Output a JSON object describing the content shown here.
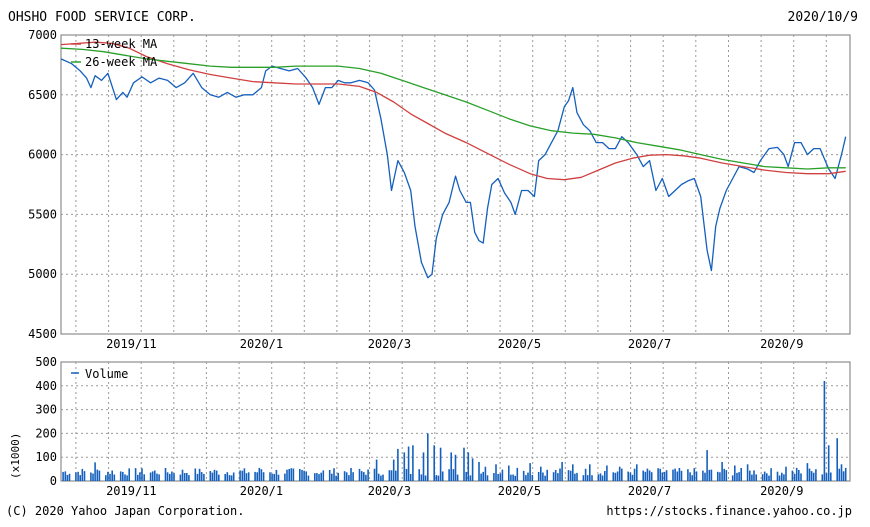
{
  "header": {
    "company": "OHSHO FOOD SERVICE CORP.",
    "date": "2020/10/9"
  },
  "footer": {
    "copyright": "(C) 2020 Yahoo Japan Corporation.",
    "url": "https://stocks.finance.yahoo.co.jp"
  },
  "chart_data": [
    {
      "type": "line",
      "panel": "price",
      "ylim": [
        4500,
        7000
      ],
      "yticks": [
        4500,
        5000,
        5500,
        6000,
        6500,
        7000
      ],
      "xlabels": [
        {
          "label": "2019/11",
          "day": 33
        },
        {
          "label": "2020/1",
          "day": 94
        },
        {
          "label": "2020/3",
          "day": 154
        },
        {
          "label": "2020/5",
          "day": 215
        },
        {
          "label": "2020/7",
          "day": 276
        },
        {
          "label": "2020/9",
          "day": 338
        }
      ],
      "xlim": [
        0,
        370
      ],
      "grid": true,
      "legend": [
        "13-week MA",
        "26-week MA"
      ],
      "series": [
        {
          "name": "",
          "color": "#1560bd",
          "points": [
            [
              0,
              6800
            ],
            [
              5,
              6760
            ],
            [
              9,
              6700
            ],
            [
              12,
              6640
            ],
            [
              14,
              6560
            ],
            [
              16,
              6660
            ],
            [
              19,
              6620
            ],
            [
              22,
              6680
            ],
            [
              26,
              6460
            ],
            [
              29,
              6520
            ],
            [
              31,
              6480
            ],
            [
              34,
              6600
            ],
            [
              38,
              6650
            ],
            [
              42,
              6600
            ],
            [
              46,
              6640
            ],
            [
              50,
              6620
            ],
            [
              54,
              6560
            ],
            [
              58,
              6600
            ],
            [
              62,
              6680
            ],
            [
              66,
              6560
            ],
            [
              70,
              6500
            ],
            [
              74,
              6480
            ],
            [
              78,
              6520
            ],
            [
              82,
              6480
            ],
            [
              86,
              6500
            ],
            [
              90,
              6500
            ],
            [
              94,
              6560
            ],
            [
              96,
              6700
            ],
            [
              99,
              6740
            ],
            [
              103,
              6720
            ],
            [
              107,
              6700
            ],
            [
              111,
              6720
            ],
            [
              115,
              6640
            ],
            [
              118,
              6560
            ],
            [
              121,
              6420
            ],
            [
              124,
              6560
            ],
            [
              127,
              6560
            ],
            [
              130,
              6620
            ],
            [
              133,
              6600
            ],
            [
              136,
              6600
            ],
            [
              140,
              6620
            ],
            [
              144,
              6600
            ],
            [
              147,
              6540
            ],
            [
              150,
              6300
            ],
            [
              153,
              6000
            ],
            [
              155,
              5700
            ],
            [
              158,
              5950
            ],
            [
              161,
              5850
            ],
            [
              164,
              5700
            ],
            [
              166,
              5400
            ],
            [
              169,
              5100
            ],
            [
              172,
              4970
            ],
            [
              174,
              5000
            ],
            [
              176,
              5300
            ],
            [
              179,
              5500
            ],
            [
              182,
              5600
            ],
            [
              185,
              5820
            ],
            [
              187,
              5700
            ],
            [
              190,
              5600
            ],
            [
              192,
              5600
            ],
            [
              194,
              5350
            ],
            [
              196,
              5280
            ],
            [
              198,
              5260
            ],
            [
              200,
              5550
            ],
            [
              202,
              5750
            ],
            [
              205,
              5800
            ],
            [
              208,
              5680
            ],
            [
              211,
              5600
            ],
            [
              213,
              5500
            ],
            [
              216,
              5700
            ],
            [
              219,
              5700
            ],
            [
              222,
              5650
            ],
            [
              224,
              5950
            ],
            [
              227,
              6000
            ],
            [
              230,
              6100
            ],
            [
              233,
              6200
            ],
            [
              236,
              6400
            ],
            [
              238,
              6450
            ],
            [
              240,
              6560
            ],
            [
              242,
              6350
            ],
            [
              245,
              6250
            ],
            [
              248,
              6200
            ],
            [
              251,
              6100
            ],
            [
              254,
              6100
            ],
            [
              257,
              6050
            ],
            [
              260,
              6050
            ],
            [
              263,
              6150
            ],
            [
              266,
              6100
            ],
            [
              270,
              6000
            ],
            [
              273,
              5900
            ],
            [
              276,
              5950
            ],
            [
              279,
              5700
            ],
            [
              282,
              5800
            ],
            [
              285,
              5650
            ],
            [
              288,
              5700
            ],
            [
              291,
              5750
            ],
            [
              294,
              5780
            ],
            [
              297,
              5800
            ],
            [
              300,
              5650
            ],
            [
              303,
              5200
            ],
            [
              305,
              5030
            ],
            [
              307,
              5400
            ],
            [
              309,
              5550
            ],
            [
              312,
              5700
            ],
            [
              315,
              5800
            ],
            [
              318,
              5900
            ],
            [
              322,
              5880
            ],
            [
              325,
              5850
            ],
            [
              328,
              5950
            ],
            [
              332,
              6050
            ],
            [
              336,
              6060
            ],
            [
              339,
              6000
            ],
            [
              341,
              5900
            ],
            [
              344,
              6100
            ],
            [
              347,
              6100
            ],
            [
              350,
              6000
            ],
            [
              353,
              6050
            ],
            [
              356,
              6050
            ],
            [
              360,
              5880
            ],
            [
              363,
              5800
            ],
            [
              366,
              6000
            ],
            [
              368,
              6150
            ]
          ]
        },
        {
          "name": "13-week MA",
          "color": "#d04040",
          "points": [
            [
              0,
              6920
            ],
            [
              8,
              6930
            ],
            [
              16,
              6940
            ],
            [
              24,
              6930
            ],
            [
              32,
              6890
            ],
            [
              40,
              6820
            ],
            [
              50,
              6760
            ],
            [
              60,
              6710
            ],
            [
              70,
              6670
            ],
            [
              80,
              6640
            ],
            [
              90,
              6610
            ],
            [
              100,
              6600
            ],
            [
              110,
              6590
            ],
            [
              120,
              6590
            ],
            [
              130,
              6590
            ],
            [
              140,
              6570
            ],
            [
              148,
              6520
            ],
            [
              156,
              6440
            ],
            [
              164,
              6340
            ],
            [
              172,
              6260
            ],
            [
              180,
              6180
            ],
            [
              190,
              6100
            ],
            [
              200,
              6010
            ],
            [
              210,
              5920
            ],
            [
              220,
              5840
            ],
            [
              228,
              5800
            ],
            [
              236,
              5790
            ],
            [
              244,
              5810
            ],
            [
              252,
              5870
            ],
            [
              260,
              5930
            ],
            [
              268,
              5970
            ],
            [
              276,
              5995
            ],
            [
              284,
              6000
            ],
            [
              292,
              5990
            ],
            [
              300,
              5970
            ],
            [
              310,
              5930
            ],
            [
              320,
              5900
            ],
            [
              330,
              5870
            ],
            [
              340,
              5850
            ],
            [
              350,
              5840
            ],
            [
              360,
              5840
            ],
            [
              368,
              5860
            ]
          ]
        },
        {
          "name": "26-week MA",
          "color": "#2aa02a",
          "points": [
            [
              0,
              6890
            ],
            [
              10,
              6880
            ],
            [
              20,
              6860
            ],
            [
              30,
              6830
            ],
            [
              40,
              6800
            ],
            [
              50,
              6780
            ],
            [
              60,
              6760
            ],
            [
              70,
              6740
            ],
            [
              80,
              6730
            ],
            [
              90,
              6730
            ],
            [
              100,
              6730
            ],
            [
              110,
              6740
            ],
            [
              120,
              6740
            ],
            [
              130,
              6740
            ],
            [
              140,
              6720
            ],
            [
              150,
              6680
            ],
            [
              160,
              6620
            ],
            [
              170,
              6560
            ],
            [
              180,
              6500
            ],
            [
              190,
              6440
            ],
            [
              200,
              6370
            ],
            [
              210,
              6300
            ],
            [
              220,
              6240
            ],
            [
              230,
              6200
            ],
            [
              240,
              6180
            ],
            [
              250,
              6170
            ],
            [
              260,
              6140
            ],
            [
              270,
              6100
            ],
            [
              280,
              6070
            ],
            [
              290,
              6040
            ],
            [
              300,
              6000
            ],
            [
              310,
              5960
            ],
            [
              320,
              5930
            ],
            [
              330,
              5900
            ],
            [
              340,
              5890
            ],
            [
              350,
              5880
            ],
            [
              360,
              5890
            ],
            [
              368,
              5890
            ]
          ]
        }
      ]
    },
    {
      "type": "bar",
      "panel": "volume",
      "ylim": [
        0,
        500
      ],
      "yticks": [
        0,
        100,
        200,
        300,
        400,
        500
      ],
      "yunit": "(x1000)",
      "grid": true,
      "legend": [
        "Volume"
      ],
      "series": [
        {
          "name": "Volume",
          "color": "#1560bd",
          "spikes": [
            [
              16,
              78
            ],
            [
              62,
              58
            ],
            [
              93,
              55
            ],
            [
              148,
              90
            ],
            [
              152,
              110
            ],
            [
              156,
              90
            ],
            [
              158,
              135
            ],
            [
              161,
              120
            ],
            [
              163,
              145
            ],
            [
              165,
              150
            ],
            [
              167,
              140
            ],
            [
              170,
              120
            ],
            [
              172,
              200
            ],
            [
              175,
              150
            ],
            [
              178,
              140
            ],
            [
              181,
              155
            ],
            [
              183,
              120
            ],
            [
              185,
              110
            ],
            [
              187,
              160
            ],
            [
              189,
              140
            ],
            [
              191,
              120
            ],
            [
              193,
              95
            ],
            [
              196,
              80
            ],
            [
              199,
              60
            ],
            [
              204,
              70
            ],
            [
              210,
              65
            ],
            [
              214,
              55
            ],
            [
              220,
              75
            ],
            [
              225,
              60
            ],
            [
              230,
              55
            ],
            [
              235,
              80
            ],
            [
              240,
              70
            ],
            [
              248,
              70
            ],
            [
              256,
              65
            ],
            [
              262,
              60
            ],
            [
              270,
              70
            ],
            [
              278,
              70
            ],
            [
              285,
              60
            ],
            [
              293,
              65
            ],
            [
              300,
              120
            ],
            [
              303,
              130
            ],
            [
              306,
              95
            ],
            [
              310,
              80
            ],
            [
              316,
              65
            ],
            [
              322,
              70
            ],
            [
              328,
              60
            ],
            [
              335,
              60
            ],
            [
              340,
              60
            ],
            [
              345,
              55
            ],
            [
              350,
              75
            ],
            [
              355,
              130
            ],
            [
              358,
              420
            ],
            [
              360,
              150
            ],
            [
              362,
              110
            ],
            [
              364,
              180
            ],
            [
              366,
              70
            ],
            [
              368,
              55
            ]
          ],
          "baseline": [
            22,
            55
          ]
        }
      ]
    }
  ]
}
